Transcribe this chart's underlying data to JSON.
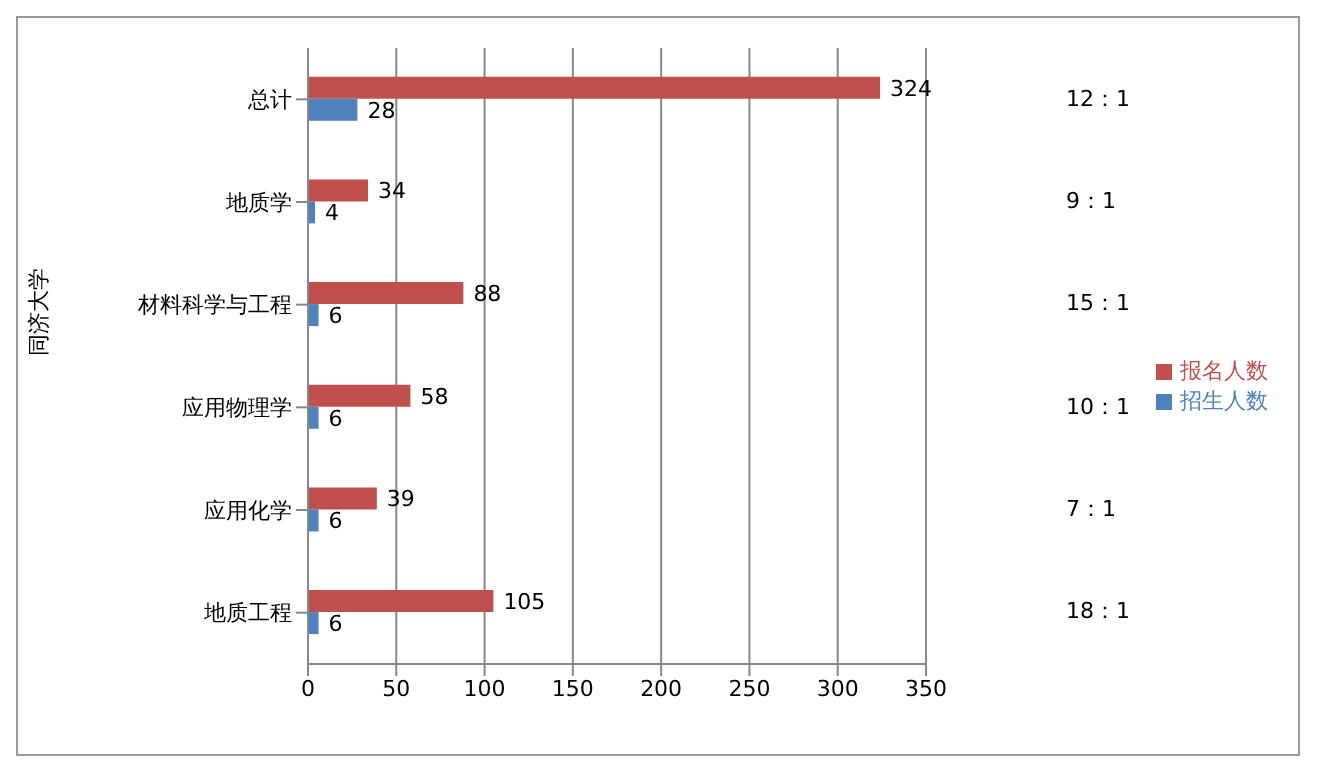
{
  "chart_data": {
    "type": "bar",
    "orientation": "horizontal",
    "ylabel": "同济大学",
    "categories": [
      "总计",
      "地质学",
      "材料科学与工程",
      "应用物理学",
      "应用化学",
      "地质工程"
    ],
    "series": [
      {
        "name": "报名人数",
        "color": "#c0504d",
        "values": [
          324,
          34,
          88,
          58,
          39,
          105
        ]
      },
      {
        "name": "招生人数",
        "color": "#4f81bd",
        "values": [
          28,
          4,
          6,
          6,
          6,
          6
        ]
      }
    ],
    "xlim": [
      0,
      350
    ],
    "xticks": [
      0,
      50,
      100,
      150,
      200,
      250,
      300,
      350
    ],
    "grid": "x",
    "legend": "right",
    "data_labels": true,
    "annotations": [
      "12：1",
      "9：1",
      "15：1",
      "10：1",
      "7：1",
      "18：1"
    ]
  }
}
